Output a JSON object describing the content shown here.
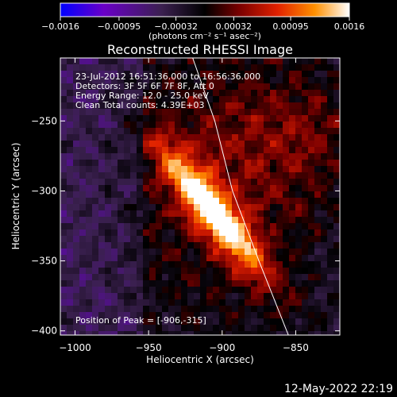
{
  "chart_data": {
    "type": "heatmap",
    "title": "Reconstructed RHESSI Image",
    "xlabel": "Heliocentric X (arcsec)",
    "ylabel": "Heliocentric Y (arcsec)",
    "xlim": [
      -1010,
      -820
    ],
    "ylim": [
      -403,
      -205
    ],
    "xticks": [
      -1000,
      -950,
      -900,
      -850
    ],
    "xtick_labels": [
      "−1000",
      "−950",
      "−900",
      "−850"
    ],
    "yticks": [
      -250,
      -300,
      -350,
      -400
    ],
    "ytick_labels": [
      "−250",
      "−300",
      "−350",
      "−400"
    ],
    "colorbar": {
      "range": [
        -0.0016,
        0.0016
      ],
      "ticks": [
        -0.0016,
        -0.00095,
        -0.00032,
        0.00032,
        0.00095,
        0.0016
      ],
      "tick_labels": [
        "−0.0016",
        "−0.00095",
        "−0.00032",
        "0.00032",
        "0.00095",
        "0.0016"
      ],
      "units_label": "(photons cm⁻² s⁻¹ asec⁻²)",
      "colors": [
        "#0000ff",
        "#6a00c8",
        "#3b2050",
        "#000000",
        "#7a0000",
        "#e02000",
        "#ff9000",
        "#ffffff"
      ]
    },
    "annotations": [
      "23-Jul-2012 16:51:36.000 to 16:56:36.000",
      "Detectors: 3F 5F 6F 7F 8F, Att 0",
      "Energy Range: 12.0 - 25.0 keV",
      "Clean    Total counts: 4.39E+03"
    ],
    "peak_label": "Position of Peak = [-906,-315]",
    "peak": [
      -906,
      -315
    ],
    "limb": [
      [
        -920,
        -205
      ],
      [
        -905,
        -250
      ],
      [
        -893,
        -300
      ],
      [
        -875,
        -350
      ],
      [
        -855,
        -403
      ]
    ]
  },
  "footer": {
    "date": "12-May-2022 22:19"
  }
}
